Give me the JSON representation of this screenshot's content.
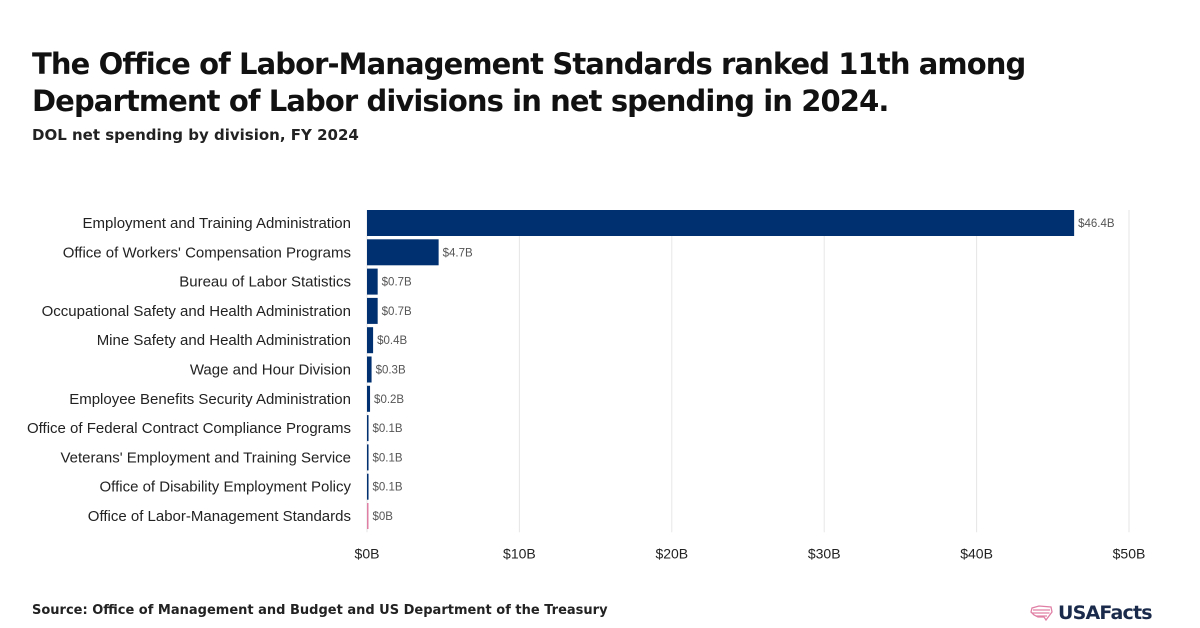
{
  "title": "The Office of Labor-Management Standards ranked 11th among Department of Labor divisions in net spending in 2024.",
  "subtitle": "DOL net spending by division, FY 2024",
  "source": "Source: Office of Management and Budget and US Department of the Treasury",
  "logo": {
    "text": "USAFacts",
    "icon": "us-flag-map-icon"
  },
  "colors": {
    "bar": "#00306f",
    "highlight": "#e07fa4",
    "grid": "#e6e6e6",
    "label": "#222222",
    "value_label": "#555555"
  },
  "chart_data": {
    "type": "bar",
    "orientation": "horizontal",
    "title": "The Office of Labor-Management Standards ranked 11th among Department of Labor divisions in net spending in 2024.",
    "subtitle": "DOL net spending by division, FY 2024",
    "xlabel": "",
    "ylabel": "",
    "xlim": [
      0,
      50
    ],
    "unit": "billion USD",
    "grid": "vertical",
    "x_ticks": [
      0,
      10,
      20,
      30,
      40,
      50
    ],
    "x_tick_labels": [
      "$0B",
      "$10B",
      "$20B",
      "$30B",
      "$40B",
      "$50B"
    ],
    "categories": [
      "Employment and Training Administration",
      "Office of Workers' Compensation Programs",
      "Bureau of Labor Statistics",
      "Occupational Safety and Health Administration",
      "Mine Safety and Health Administration",
      "Wage and Hour Division",
      "Employee Benefits Security Administration",
      "Office of Federal Contract Compliance Programs",
      "Veterans' Employment and Training Service",
      "Office of Disability Employment Policy",
      "Office of Labor-Management Standards"
    ],
    "values": [
      46.4,
      4.7,
      0.7,
      0.7,
      0.4,
      0.3,
      0.2,
      0.1,
      0.1,
      0.1,
      0.05
    ],
    "value_labels": [
      "$46.4B",
      "$4.7B",
      "$0.7B",
      "$0.7B",
      "$0.4B",
      "$0.3B",
      "$0.2B",
      "$0.1B",
      "$0.1B",
      "$0.1B",
      "$0B"
    ],
    "highlighted": "Office of Labor-Management Standards"
  }
}
